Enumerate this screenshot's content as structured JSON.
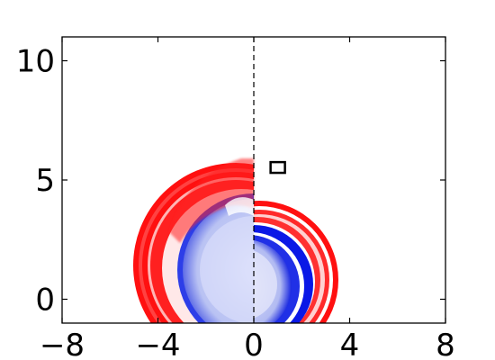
{
  "chart_data": {
    "type": "heatmap",
    "title": "",
    "xlabel": "",
    "ylabel": "",
    "xlim": [
      -8,
      8
    ],
    "ylim": [
      -1,
      11
    ],
    "xticks": [
      {
        "value": -8,
        "label": "−8"
      },
      {
        "value": -4,
        "label": "−4"
      },
      {
        "value": 0,
        "label": "0"
      },
      {
        "value": 4,
        "label": "4"
      },
      {
        "value": 8,
        "label": "8"
      }
    ],
    "yticks": [
      {
        "value": 0,
        "label": "0"
      },
      {
        "value": 5,
        "label": "5"
      },
      {
        "value": 10,
        "label": "10"
      }
    ],
    "colormap": {
      "positive": "#ff0000",
      "negative": "#0000ff",
      "zero": "#ffffff"
    },
    "symmetry_line": {
      "x": 0,
      "style": "dashed",
      "color": "#000000"
    },
    "marker_box": {
      "x": [
        0.7,
        1.3
      ],
      "y": [
        5.3,
        5.75
      ]
    },
    "features": [
      {
        "name": "outer red arc left",
        "sign": "positive",
        "center": [
          -0.7,
          1.5
        ],
        "radius": 4.4,
        "description": "red shell on x<0"
      },
      {
        "name": "inner blue disk left",
        "sign": "negative",
        "center": [
          0,
          1.3
        ],
        "radius": 3.0
      },
      {
        "name": "red shell right",
        "sign": "positive",
        "center": [
          0.2,
          1.6
        ],
        "radius": 3.3
      },
      {
        "name": "blue disk right",
        "sign": "negative",
        "center": [
          0.2,
          1.3
        ],
        "radius": 2.4
      }
    ]
  }
}
